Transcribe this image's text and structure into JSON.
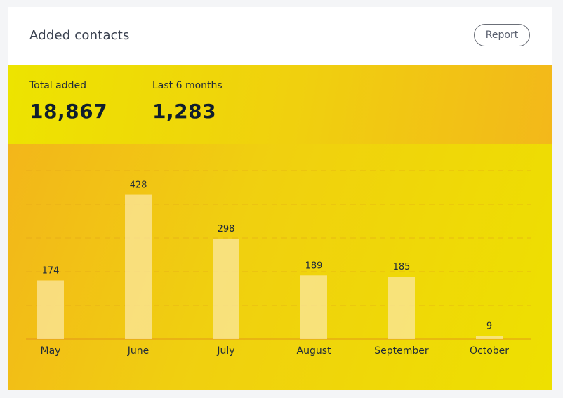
{
  "card": {
    "title": "Added contacts",
    "report_label": "Report"
  },
  "summary": {
    "total_label": "Total added",
    "total_value": "18,867",
    "last_label": "Last 6 months",
    "last_value": "1,283"
  },
  "chart_data": {
    "type": "bar",
    "categories": [
      "May",
      "June",
      "July",
      "August",
      "September",
      "October"
    ],
    "values": [
      174,
      428,
      298,
      189,
      185,
      9
    ],
    "title": "",
    "xlabel": "",
    "ylabel": "",
    "ylim": [
      0,
      500
    ],
    "grid": true,
    "colors": {
      "bar": "#fbe7a0",
      "gridline": "#e0a21a",
      "baseline": "#e08a1a",
      "label": "#1f2a3a"
    }
  }
}
